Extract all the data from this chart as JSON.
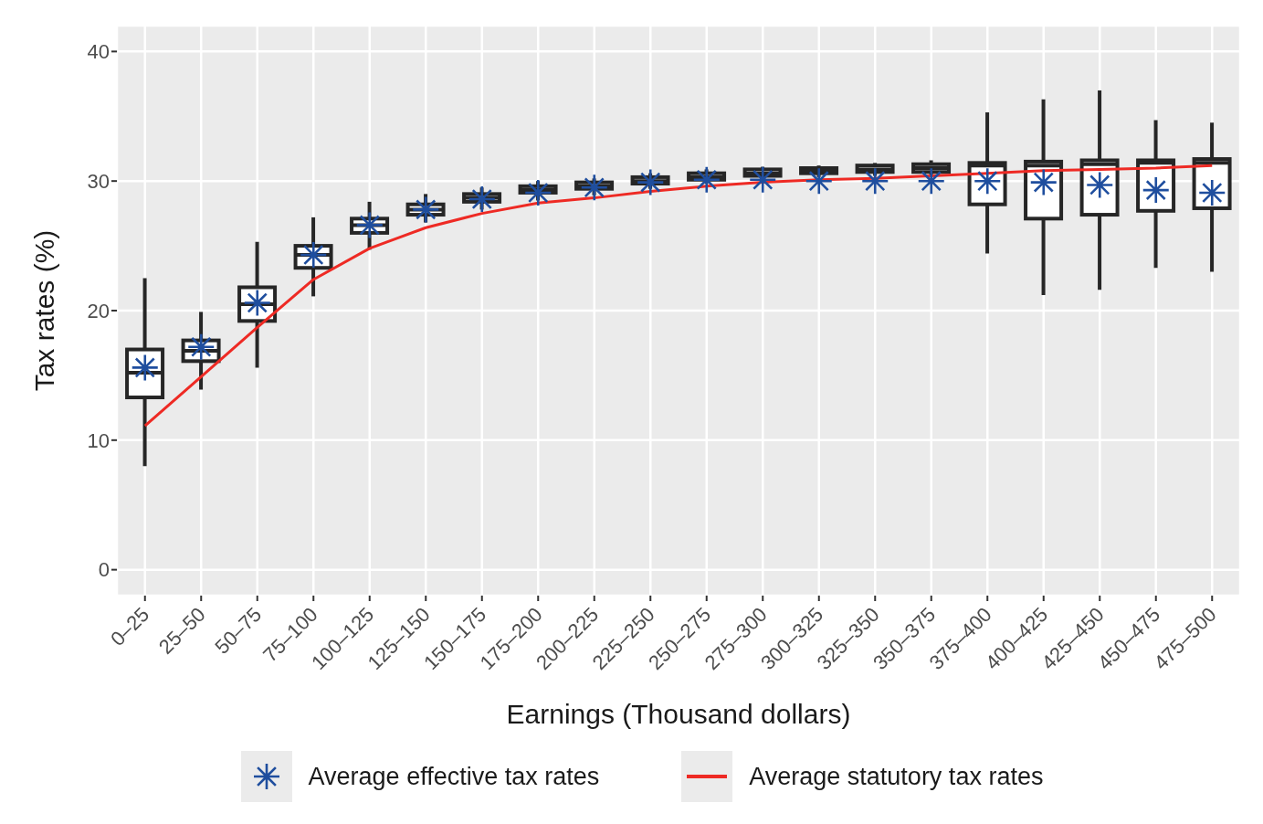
{
  "chart_data": {
    "type": "box",
    "xlabel": "Earnings (Thousand dollars)",
    "ylabel": "Tax rates (%)",
    "categories": [
      "0–25",
      "25–50",
      "50–75",
      "75–100",
      "100–125",
      "125–150",
      "150–175",
      "175–200",
      "200–225",
      "225–250",
      "250–275",
      "275–300",
      "300–325",
      "325–350",
      "350–375",
      "375–400",
      "400–425",
      "425–450",
      "450–475",
      "475–500"
    ],
    "boxes": [
      {
        "low": 8.0,
        "q1": 13.3,
        "median": 15.2,
        "q3": 17.0,
        "high": 22.5
      },
      {
        "low": 13.9,
        "q1": 16.1,
        "median": 16.9,
        "q3": 17.7,
        "high": 19.9
      },
      {
        "low": 15.6,
        "q1": 19.2,
        "median": 20.5,
        "q3": 21.8,
        "high": 25.3
      },
      {
        "low": 21.1,
        "q1": 23.3,
        "median": 24.3,
        "q3": 25.0,
        "high": 27.2
      },
      {
        "low": 24.7,
        "q1": 26.0,
        "median": 26.6,
        "q3": 27.1,
        "high": 28.4
      },
      {
        "low": 26.8,
        "q1": 27.4,
        "median": 27.8,
        "q3": 28.2,
        "high": 29.0
      },
      {
        "low": 27.8,
        "q1": 28.4,
        "median": 28.7,
        "q3": 29.0,
        "high": 29.5
      },
      {
        "low": 28.5,
        "q1": 29.1,
        "median": 29.3,
        "q3": 29.6,
        "high": 30.0
      },
      {
        "low": 28.9,
        "q1": 29.4,
        "median": 29.6,
        "q3": 29.9,
        "high": 30.2
      },
      {
        "low": 29.4,
        "q1": 29.8,
        "median": 30.0,
        "q3": 30.3,
        "high": 30.6
      },
      {
        "low": 29.8,
        "q1": 30.1,
        "median": 30.3,
        "q3": 30.6,
        "high": 30.9
      },
      {
        "low": 30.1,
        "q1": 30.4,
        "median": 30.6,
        "q3": 30.9,
        "high": 31.1
      },
      {
        "low": 30.3,
        "q1": 30.6,
        "median": 30.8,
        "q3": 31.0,
        "high": 31.2
      },
      {
        "low": 30.4,
        "q1": 30.7,
        "median": 30.9,
        "q3": 31.2,
        "high": 31.4
      },
      {
        "low": 30.4,
        "q1": 30.7,
        "median": 31.0,
        "q3": 31.3,
        "high": 31.6
      },
      {
        "low": 24.4,
        "q1": 28.2,
        "median": 31.2,
        "q3": 31.4,
        "high": 35.3
      },
      {
        "low": 21.2,
        "q1": 27.1,
        "median": 31.2,
        "q3": 31.5,
        "high": 36.3
      },
      {
        "low": 21.6,
        "q1": 27.4,
        "median": 31.3,
        "q3": 31.6,
        "high": 37.0
      },
      {
        "low": 23.3,
        "q1": 27.7,
        "median": 31.4,
        "q3": 31.6,
        "high": 34.7
      },
      {
        "low": 23.0,
        "q1": 27.9,
        "median": 31.4,
        "q3": 31.7,
        "high": 34.5
      }
    ],
    "series": [
      {
        "name": "Average effective tax rates",
        "type": "scatter",
        "marker": "cross",
        "color": "#1f4e9e",
        "values": [
          15.6,
          17.2,
          20.6,
          24.3,
          26.6,
          27.8,
          28.6,
          29.1,
          29.5,
          29.9,
          30.1,
          30.1,
          30.0,
          30.0,
          30.0,
          30.0,
          29.9,
          29.7,
          29.3,
          29.1
        ]
      },
      {
        "name": "Average statutory tax rates",
        "type": "line",
        "color": "#ee2a24",
        "line_style": "solid",
        "marker": "none",
        "values": [
          11.1,
          14.9,
          18.7,
          22.4,
          24.8,
          26.4,
          27.5,
          28.3,
          28.7,
          29.2,
          29.6,
          29.9,
          30.1,
          30.2,
          30.4,
          30.6,
          30.8,
          30.9,
          31.0,
          31.2
        ]
      }
    ],
    "ylim": [
      -2,
      42
    ],
    "yticks": [
      0,
      10,
      20,
      30,
      40
    ],
    "grid": true,
    "legend": "bottom"
  }
}
